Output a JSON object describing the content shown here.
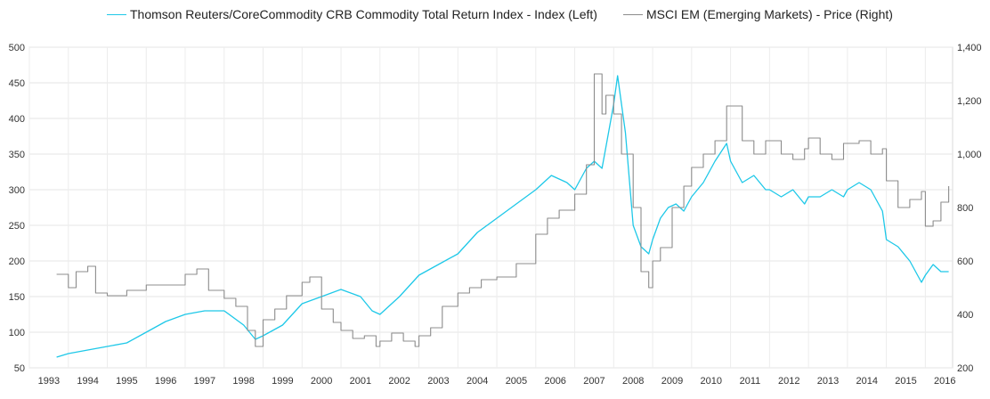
{
  "chart_data": {
    "type": "line",
    "title": "",
    "legend": {
      "placement": "top",
      "entries": [
        {
          "name": "Thomson Reuters/CoreCommodity CRB Commodity Total Return Index - Index (Left)",
          "color": "#1ec8e8"
        },
        {
          "name": "MSCI EM (Emerging Markets) - Price (Right)",
          "color": "#8c8c8c"
        }
      ]
    },
    "x_axis": {
      "range": [
        1993.0,
        2016.7
      ],
      "ticks": [
        "1993",
        "1994",
        "1995",
        "1996",
        "1997",
        "1998",
        "1999",
        "2000",
        "2001",
        "2002",
        "2003",
        "2004",
        "2005",
        "2006",
        "2007",
        "2008",
        "2009",
        "2010",
        "2011",
        "2012",
        "2013",
        "2014",
        "2015",
        "2016"
      ]
    },
    "y_left": {
      "range": [
        50,
        500
      ],
      "ticks": [
        "50",
        "100",
        "150",
        "200",
        "250",
        "300",
        "350",
        "400",
        "450",
        "500"
      ]
    },
    "y_right": {
      "range": [
        200,
        1400
      ],
      "ticks": [
        "200",
        "400",
        "600",
        "800",
        "1,000",
        "1,200",
        "1,400"
      ]
    },
    "grid": true,
    "series": [
      {
        "name": "Thomson Reuters/CoreCommodity CRB Commodity Total Return Index - Index (Left)",
        "axis": "left",
        "color": "#1ec8e8",
        "x": [
          1993.7,
          1994.0,
          1994.5,
          1995.0,
          1995.5,
          1996.0,
          1996.5,
          1997.0,
          1997.5,
          1998.0,
          1998.5,
          1998.8,
          1999.0,
          1999.5,
          2000.0,
          2000.5,
          2001.0,
          2001.5,
          2001.8,
          2002.0,
          2002.5,
          2003.0,
          2003.5,
          2004.0,
          2004.5,
          2005.0,
          2005.5,
          2006.0,
          2006.4,
          2006.8,
          2007.0,
          2007.3,
          2007.5,
          2007.7,
          2007.8,
          2008.0,
          2008.1,
          2008.2,
          2008.3,
          2008.5,
          2008.7,
          2008.9,
          2009.0,
          2009.2,
          2009.4,
          2009.6,
          2009.8,
          2010.0,
          2010.3,
          2010.6,
          2010.9,
          2011.0,
          2011.3,
          2011.6,
          2011.9,
          2012.0,
          2012.3,
          2012.6,
          2012.9,
          2013.0,
          2013.3,
          2013.6,
          2013.9,
          2014.0,
          2014.3,
          2014.6,
          2014.9,
          2015.0,
          2015.3,
          2015.6,
          2015.9,
          2016.0,
          2016.2,
          2016.4,
          2016.6
        ],
        "y": [
          65,
          70,
          75,
          80,
          85,
          100,
          115,
          125,
          130,
          130,
          110,
          90,
          95,
          110,
          140,
          150,
          160,
          150,
          130,
          125,
          150,
          180,
          195,
          210,
          240,
          260,
          280,
          300,
          320,
          310,
          300,
          330,
          340,
          330,
          360,
          420,
          460,
          420,
          380,
          250,
          220,
          210,
          230,
          260,
          275,
          280,
          270,
          290,
          310,
          340,
          365,
          340,
          310,
          320,
          300,
          300,
          290,
          300,
          280,
          290,
          290,
          300,
          290,
          300,
          310,
          300,
          270,
          230,
          220,
          200,
          170,
          180,
          195,
          185,
          185
        ]
      },
      {
        "name": "MSCI EM (Emerging Markets) - Price (Right)",
        "axis": "right",
        "color": "#8c8c8c",
        "x": [
          1993.7,
          1994.0,
          1994.2,
          1994.5,
          1994.7,
          1995.0,
          1995.5,
          1996.0,
          1996.5,
          1997.0,
          1997.3,
          1997.6,
          1998.0,
          1998.3,
          1998.6,
          1998.8,
          1999.0,
          1999.3,
          1999.6,
          2000.0,
          2000.2,
          2000.5,
          2000.8,
          2001.0,
          2001.3,
          2001.6,
          2001.9,
          2002.0,
          2002.3,
          2002.6,
          2002.9,
          2003.0,
          2003.3,
          2003.6,
          2004.0,
          2004.3,
          2004.6,
          2005.0,
          2005.5,
          2006.0,
          2006.3,
          2006.6,
          2007.0,
          2007.3,
          2007.5,
          2007.7,
          2007.8,
          2008.0,
          2008.2,
          2008.5,
          2008.7,
          2008.9,
          2009.0,
          2009.2,
          2009.5,
          2009.8,
          2010.0,
          2010.3,
          2010.6,
          2010.9,
          2011.0,
          2011.3,
          2011.6,
          2011.9,
          2012.0,
          2012.3,
          2012.6,
          2012.9,
          2013.0,
          2013.3,
          2013.6,
          2013.9,
          2014.0,
          2014.3,
          2014.6,
          2014.9,
          2015.0,
          2015.3,
          2015.6,
          2015.9,
          2016.0,
          2016.2,
          2016.4,
          2016.6
        ],
        "y": [
          550,
          500,
          560,
          580,
          480,
          470,
          490,
          510,
          510,
          550,
          570,
          490,
          460,
          430,
          340,
          280,
          380,
          420,
          470,
          520,
          540,
          420,
          370,
          340,
          310,
          320,
          280,
          300,
          330,
          300,
          280,
          320,
          350,
          430,
          480,
          500,
          530,
          540,
          590,
          700,
          760,
          790,
          850,
          960,
          1300,
          1150,
          1220,
          1150,
          1000,
          800,
          560,
          500,
          600,
          650,
          800,
          880,
          950,
          1000,
          1050,
          1180,
          1180,
          1050,
          1000,
          1050,
          1050,
          1000,
          980,
          1020,
          1060,
          1000,
          980,
          1040,
          1040,
          1050,
          1000,
          1020,
          900,
          800,
          830,
          860,
          730,
          750,
          820,
          880
        ]
      }
    ]
  }
}
